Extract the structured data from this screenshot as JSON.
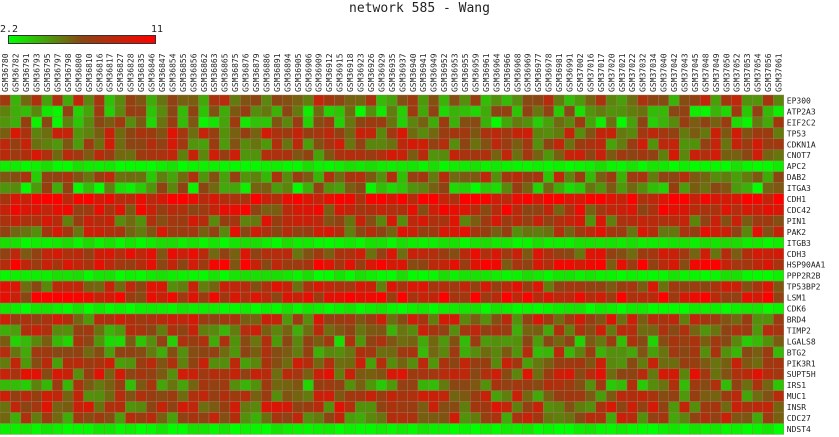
{
  "title": "network 585 - Wang",
  "legend": {
    "min_label": "2.2",
    "max_label": "11",
    "low_color": "#00ff00",
    "mid_color": "#8b4513",
    "high_color": "#ff0000"
  },
  "chart_data": {
    "type": "heatmap",
    "title": "network 585 - Wang",
    "value_range": [
      2.2,
      11
    ],
    "columns": [
      "GSM36780",
      "GSM36782",
      "GSM36791",
      "GSM36793",
      "GSM36795",
      "GSM36797",
      "GSM36798",
      "GSM36800",
      "GSM36810",
      "GSM36816",
      "GSM36817",
      "GSM36827",
      "GSM36828",
      "GSM36835",
      "GSM36846",
      "GSM36847",
      "GSM36854",
      "GSM36855",
      "GSM36856",
      "GSM36862",
      "GSM36863",
      "GSM36865",
      "GSM36875",
      "GSM36876",
      "GSM36879",
      "GSM36886",
      "GSM36891",
      "GSM36894",
      "GSM36905",
      "GSM36906",
      "GSM36909",
      "GSM36912",
      "GSM36915",
      "GSM36918",
      "GSM36923",
      "GSM36926",
      "GSM36929",
      "GSM36935",
      "GSM36937",
      "GSM36940",
      "GSM36941",
      "GSM36949",
      "GSM36952",
      "GSM36953",
      "GSM36955",
      "GSM36959",
      "GSM36961",
      "GSM36964",
      "GSM36966",
      "GSM36968",
      "GSM36969",
      "GSM36977",
      "GSM36978",
      "GSM36981",
      "GSM36991",
      "GSM37002",
      "GSM37016",
      "GSM37017",
      "GSM37020",
      "GSM37021",
      "GSM37022",
      "GSM37032",
      "GSM37034",
      "GSM37040",
      "GSM37042",
      "GSM37043",
      "GSM37045",
      "GSM37048",
      "GSM37049",
      "GSM37050",
      "GSM37052",
      "GSM37053",
      "GSM37054",
      "GSM37056",
      "GSM37061"
    ],
    "rows": [
      "EP300",
      "ATP2A3",
      "EIF2C2",
      "TP53",
      "CDKN1A",
      "CNOT7",
      "APC2",
      "DAB2",
      "ITGA3",
      "CDH1",
      "CDC42",
      "PIN1",
      "PAK2",
      "ITGB3",
      "CDH3",
      "HSP90AA1",
      "PPP2R2B",
      "TP53BP2",
      "LSM1",
      "CDK6",
      "BRD4",
      "TIMP2",
      "LGALS8",
      "BTG2",
      "PIK3R1",
      "SUPT5H",
      "IRS1",
      "MUC1",
      "INSR",
      "CDC27",
      "NDST4"
    ],
    "row_levels": [
      6.2,
      4.8,
      4.9,
      7.2,
      6.8,
      7.0,
      2.6,
      6.0,
      4.6,
      10.2,
      8.4,
      7.2,
      7.4,
      2.7,
      7.6,
      8.6,
      2.6,
      7.4,
      9.0,
      2.5,
      7.2,
      6.5,
      5.4,
      5.9,
      6.7,
      7.4,
      5.6,
      6.8,
      7.2,
      6.6,
      2.5
    ]
  }
}
